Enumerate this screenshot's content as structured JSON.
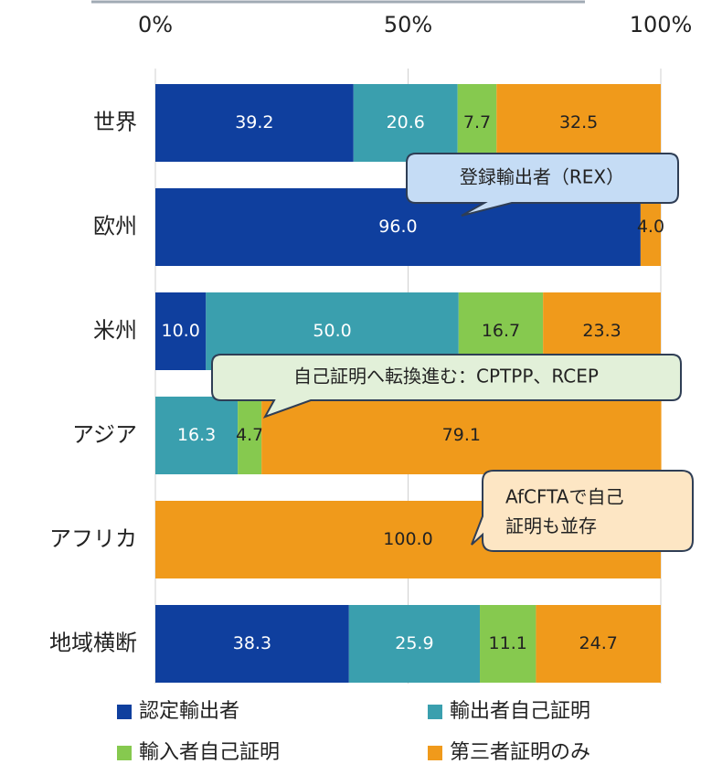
{
  "chart_data": {
    "type": "stacked-barh",
    "categories": [
      "世界",
      "欧州",
      "米州",
      "アジア",
      "アフリカ",
      "地域横断"
    ],
    "series": [
      {
        "name": "認定輸出者",
        "color": "#0f3f9e",
        "label_color": "#ffffff",
        "values": [
          39.2,
          96.0,
          10.0,
          null,
          null,
          38.3
        ],
        "value_labels": [
          "39.2",
          "96.0",
          "10.0",
          null,
          null,
          "38.3"
        ]
      },
      {
        "name": "輸出者自己証明",
        "color": "#3a9fae",
        "label_color": "#ffffff",
        "values": [
          20.6,
          null,
          50.0,
          16.3,
          null,
          25.9
        ],
        "value_labels": [
          "20.6",
          null,
          "50.0",
          "16.3",
          null,
          "25.9"
        ]
      },
      {
        "name": "輸入者自己証明",
        "color": "#86c94f",
        "label_color": "#222222",
        "values": [
          7.7,
          null,
          16.7,
          4.7,
          null,
          11.1
        ],
        "value_labels": [
          "7.7",
          null,
          "16.7",
          "4.7",
          null,
          "11.1"
        ]
      },
      {
        "name": "第三者証明のみ",
        "color": "#f09a1b",
        "label_color": "#222222",
        "values": [
          32.5,
          4.0,
          23.3,
          79.1,
          100.0,
          24.7
        ],
        "value_labels": [
          "32.5",
          "4.0",
          "23.3",
          "79.1",
          "100.0",
          "24.7"
        ]
      }
    ],
    "xlim": [
      0,
      100
    ],
    "xticks": [
      {
        "value": 0,
        "label": "0%"
      },
      {
        "value": 50,
        "label": "50%"
      },
      {
        "value": 100,
        "label": "100%"
      }
    ],
    "grid": true,
    "annotations": [
      "登録輸出者（REX）",
      "自己証明へ転換進む：CPTPP、RCEP",
      [
        "AfCFTAで自己",
        "証明も並存"
      ]
    ]
  }
}
